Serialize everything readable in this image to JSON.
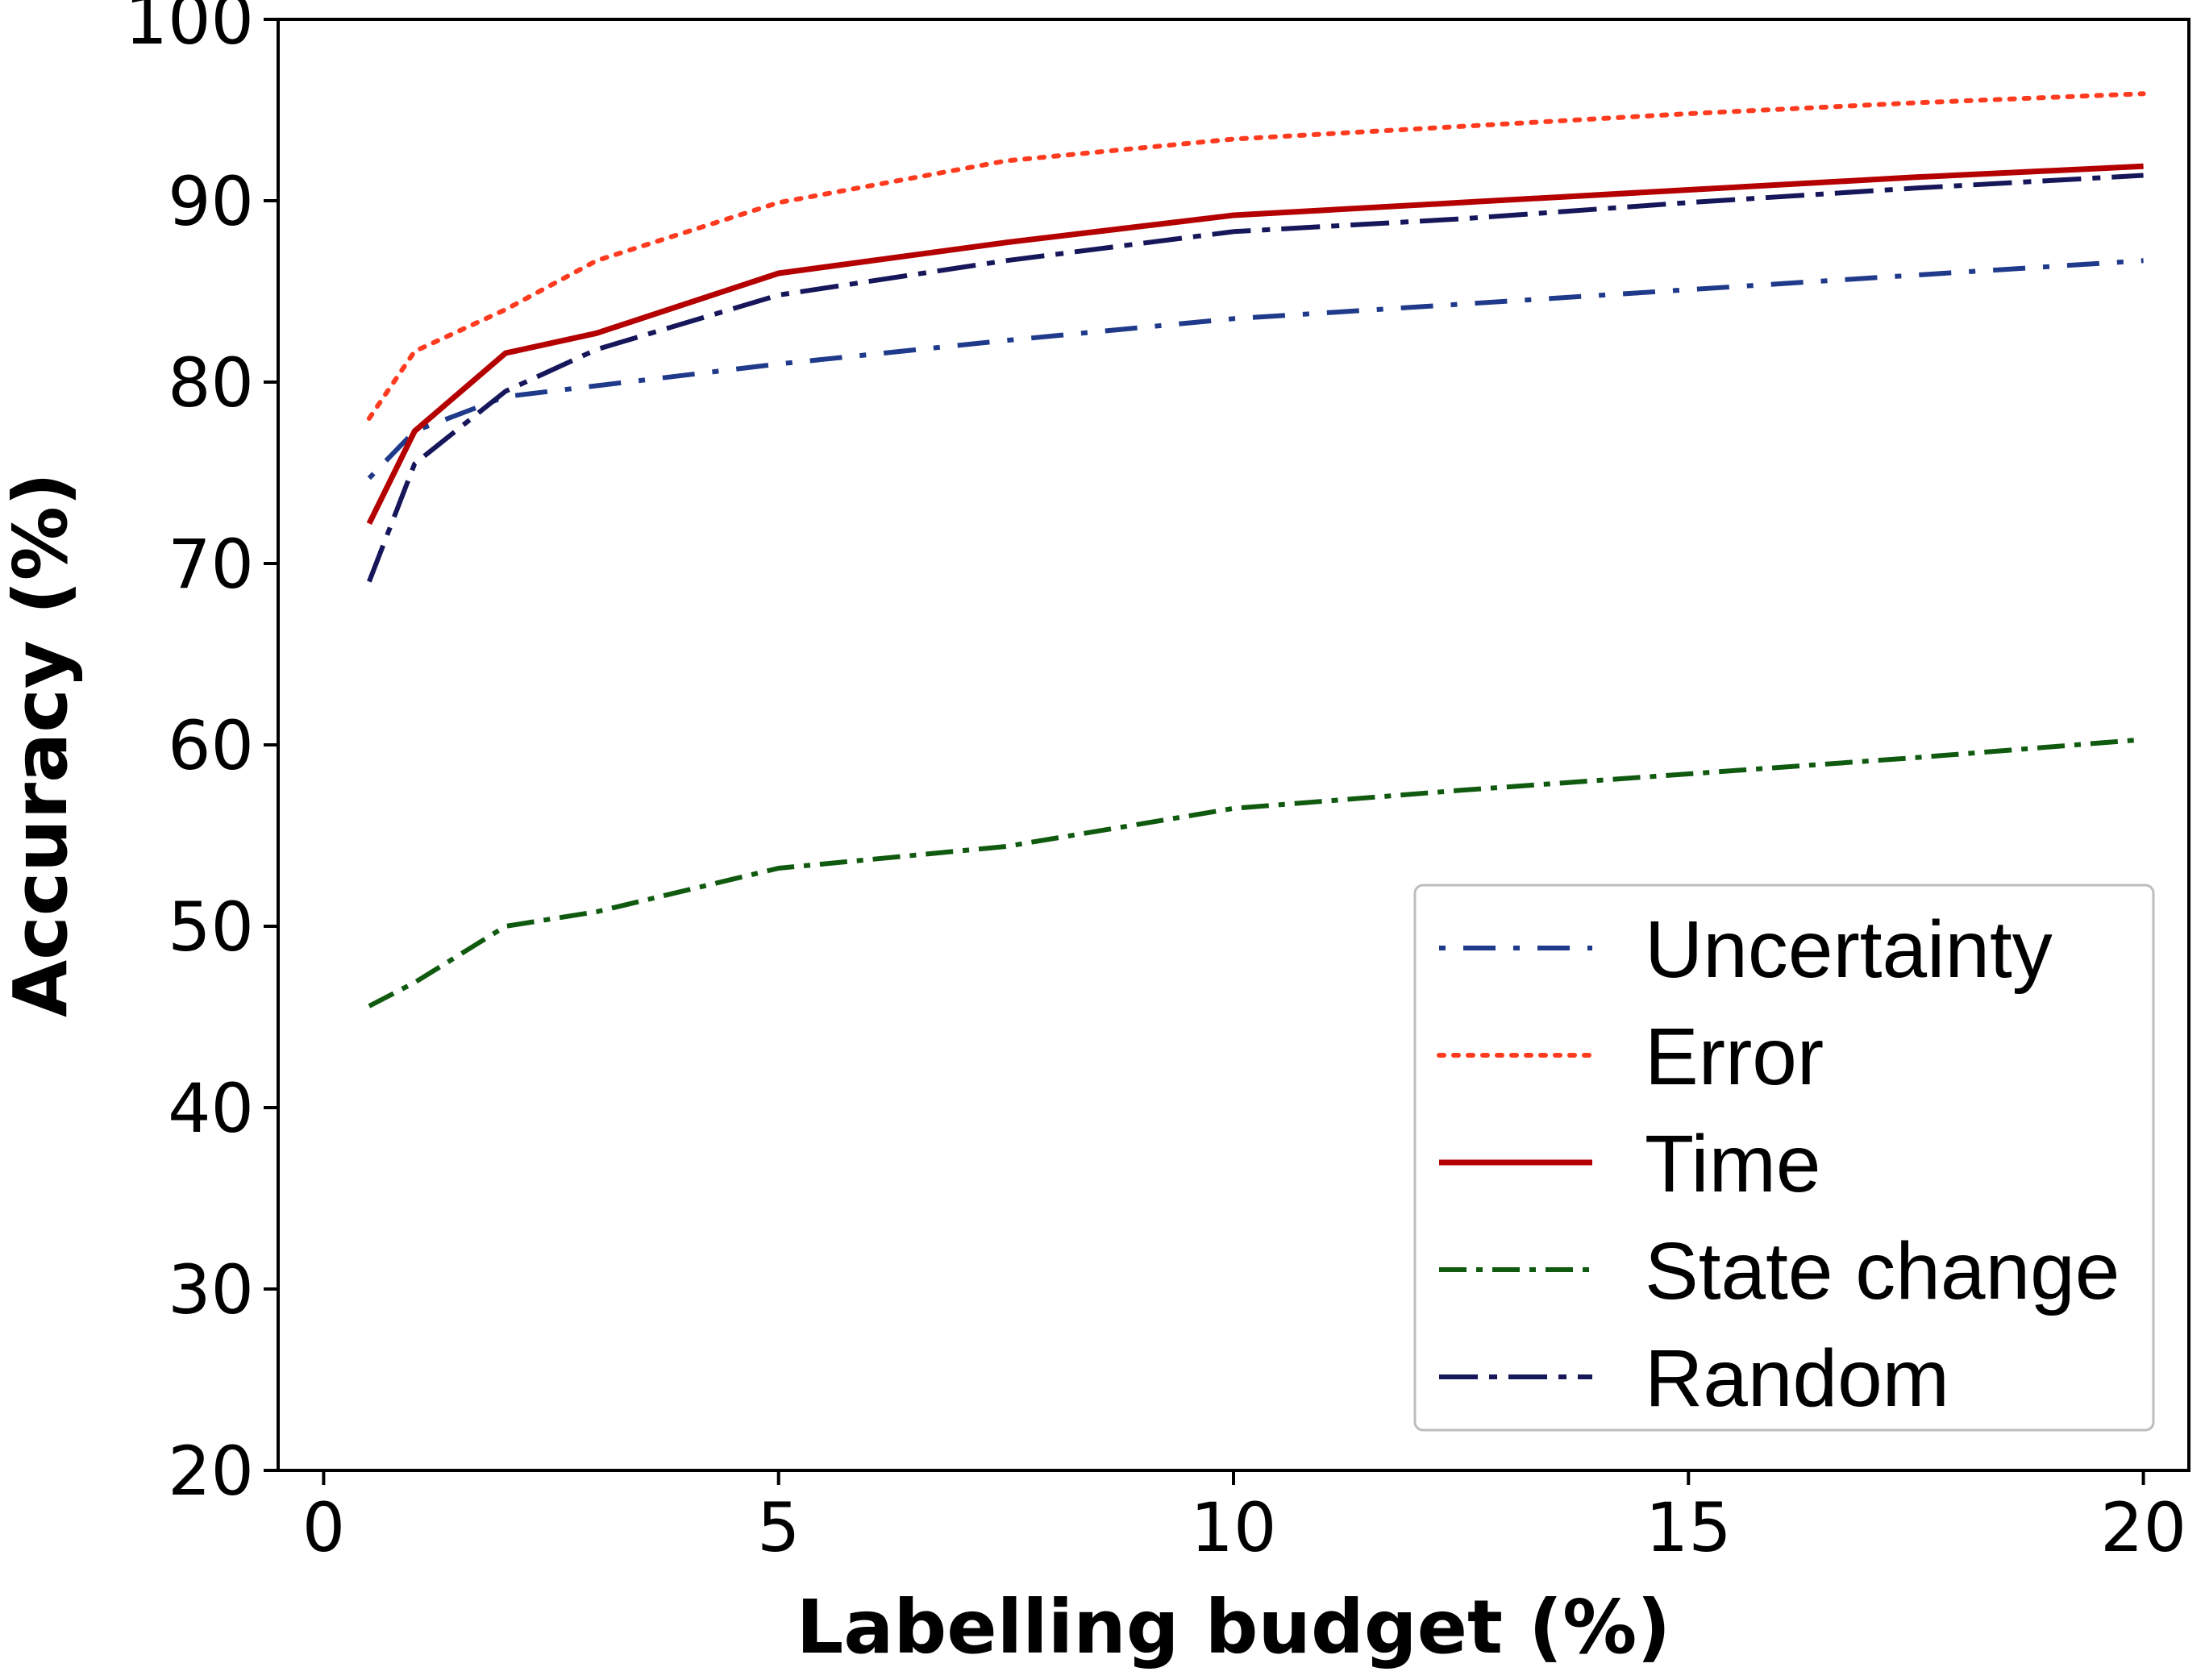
{
  "chart_data": {
    "type": "line",
    "title": "",
    "xlabel": "Labelling budget (%)",
    "ylabel": "Accuracy (%)",
    "xlim": [
      -0.5,
      20.5
    ],
    "ylim": [
      20,
      100
    ],
    "xticks": [
      0,
      5,
      10,
      15,
      20
    ],
    "yticks": [
      20,
      30,
      40,
      50,
      60,
      70,
      80,
      90,
      100
    ],
    "grid": false,
    "legend_position": "lower-right",
    "series": [
      {
        "name": "Uncertainty",
        "color": "#1f3a8a",
        "dash": "dots-dash",
        "x": [
          0.5,
          1,
          2,
          3,
          5,
          7.5,
          10,
          12.5,
          15,
          17.5,
          20
        ],
        "values": [
          74.7,
          77.3,
          79.2,
          79.8,
          81.0,
          82.3,
          83.5,
          84.3,
          85.1,
          85.9,
          86.7
        ]
      },
      {
        "name": "Error",
        "color": "#ff3b1f",
        "dash": "dotted",
        "x": [
          0.5,
          1,
          2,
          3,
          5,
          7.5,
          10,
          12.5,
          15,
          17.5,
          20
        ],
        "values": [
          78.0,
          81.7,
          84.0,
          86.7,
          89.9,
          92.2,
          93.4,
          94.1,
          94.8,
          95.4,
          95.9
        ]
      },
      {
        "name": "Time",
        "color": "#b40000",
        "dash": "solid",
        "x": [
          0.5,
          1,
          2,
          3,
          5,
          7.5,
          10,
          12.5,
          15,
          17.5,
          20
        ],
        "values": [
          72.2,
          77.3,
          81.6,
          82.7,
          86.0,
          87.7,
          89.2,
          89.9,
          90.6,
          91.3,
          91.9
        ]
      },
      {
        "name": "State change",
        "color": "#0f5a0f",
        "dash": "dash-dot",
        "x": [
          0.5,
          1,
          2,
          3,
          5,
          7.5,
          10,
          12.5,
          15,
          17.5,
          20
        ],
        "values": [
          45.6,
          46.9,
          50.0,
          50.8,
          53.2,
          54.4,
          56.5,
          57.5,
          58.4,
          59.3,
          60.3
        ]
      },
      {
        "name": "Random",
        "color": "#16165a",
        "dash": "long-dash-dot",
        "x": [
          0.5,
          1,
          2,
          3,
          5,
          7.5,
          10,
          12.5,
          15,
          17.5,
          20
        ],
        "values": [
          69.0,
          75.5,
          79.5,
          81.8,
          84.8,
          86.7,
          88.3,
          89.0,
          89.9,
          90.7,
          91.4
        ]
      }
    ]
  }
}
